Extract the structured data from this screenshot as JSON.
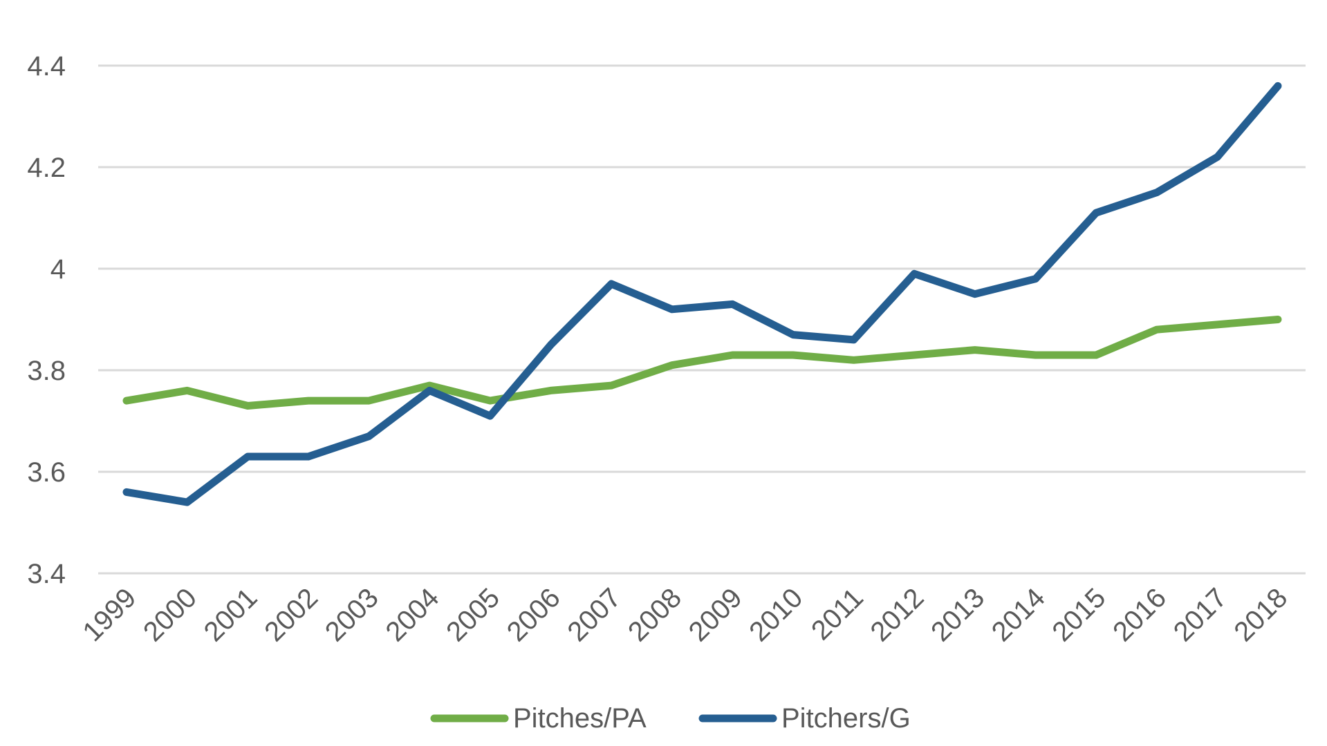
{
  "chart_data": {
    "type": "line",
    "title": "",
    "xlabel": "",
    "ylabel": "",
    "categories": [
      "1999",
      "2000",
      "2001",
      "2002",
      "2003",
      "2004",
      "2005",
      "2006",
      "2007",
      "2008",
      "2009",
      "2010",
      "2011",
      "2012",
      "2013",
      "2014",
      "2015",
      "2016",
      "2017",
      "2018"
    ],
    "y_ticks": [
      "3.4",
      "3.6",
      "3.8",
      "4",
      "4.2",
      "4.4"
    ],
    "ylim": [
      3.4,
      4.4
    ],
    "grid": true,
    "legend_position": "bottom",
    "series": [
      {
        "name": "Pitches/PA",
        "color": "#70ad47",
        "values": [
          3.74,
          3.76,
          3.73,
          3.74,
          3.74,
          3.77,
          3.74,
          3.76,
          3.77,
          3.81,
          3.83,
          3.83,
          3.82,
          3.83,
          3.84,
          3.83,
          3.83,
          3.88,
          3.89,
          3.9
        ]
      },
      {
        "name": "Pitchers/G",
        "color": "#255e91",
        "values": [
          3.56,
          3.54,
          3.63,
          3.63,
          3.67,
          3.76,
          3.71,
          3.85,
          3.97,
          3.92,
          3.93,
          3.87,
          3.86,
          3.99,
          3.95,
          3.98,
          4.11,
          4.15,
          4.22,
          4.36
        ]
      }
    ]
  }
}
